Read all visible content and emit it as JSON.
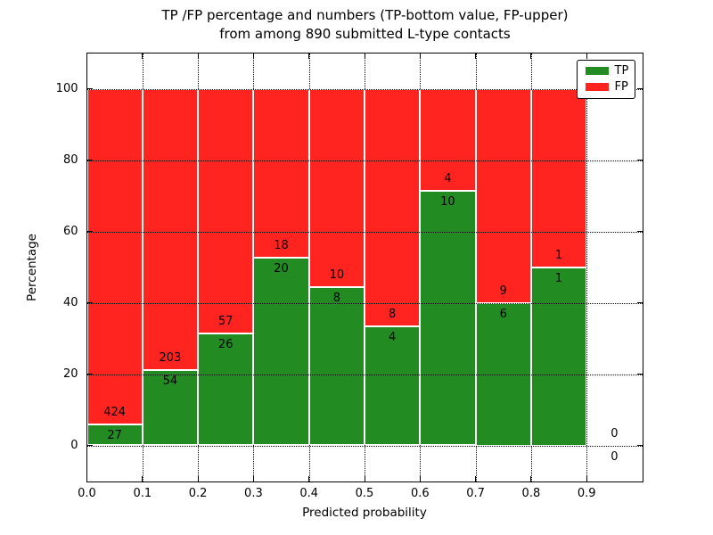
{
  "title": {
    "line1": "TP /FP percentage and numbers (TP-bottom value, FP-upper)",
    "line2": "from among 890 submitted L-type contacts"
  },
  "chart_data": {
    "type": "bar",
    "stacked": true,
    "normalized": "each bin scaled to 100%",
    "title": "TP /FP percentage and numbers (TP-bottom value, FP-upper) from among 890 submitted L-type contacts",
    "xlabel": "Predicted probability",
    "ylabel": "Percentage",
    "xlim": [
      0.0,
      1.0
    ],
    "ylim": [
      -10,
      110
    ],
    "xticks": [
      {
        "value": 0.0,
        "label": "0.0"
      },
      {
        "value": 0.1,
        "label": "0.1"
      },
      {
        "value": 0.2,
        "label": "0.2"
      },
      {
        "value": 0.3,
        "label": "0.3"
      },
      {
        "value": 0.4,
        "label": "0.4"
      },
      {
        "value": 0.5,
        "label": "0.5"
      },
      {
        "value": 0.6,
        "label": "0.6"
      },
      {
        "value": 0.7,
        "label": "0.7"
      },
      {
        "value": 0.8,
        "label": "0.8"
      },
      {
        "value": 0.9,
        "label": "0.9"
      }
    ],
    "yticks": [
      {
        "value": 0,
        "label": "0"
      },
      {
        "value": 20,
        "label": "20"
      },
      {
        "value": 40,
        "label": "40"
      },
      {
        "value": 60,
        "label": "60"
      },
      {
        "value": 80,
        "label": "80"
      },
      {
        "value": 100,
        "label": "100"
      }
    ],
    "grid": "dotted",
    "total_contacts": 890,
    "colors": {
      "tp": "#228b22",
      "fp": "#ff2420",
      "bar_edge": "#ffffff"
    },
    "legend": {
      "position": "upper right",
      "entries": [
        {
          "label": "TP",
          "color": "#228b22"
        },
        {
          "label": "FP",
          "color": "#ff2420"
        }
      ]
    },
    "bins": [
      {
        "x_start": 0.0,
        "x_end": 0.1,
        "tp": 27,
        "fp": 424,
        "tp_pct": 5.99,
        "fp_pct": 94.01
      },
      {
        "x_start": 0.1,
        "x_end": 0.2,
        "tp": 54,
        "fp": 203,
        "tp_pct": 21.01,
        "fp_pct": 78.99
      },
      {
        "x_start": 0.2,
        "x_end": 0.3,
        "tp": 26,
        "fp": 57,
        "tp_pct": 31.33,
        "fp_pct": 68.67
      },
      {
        "x_start": 0.3,
        "x_end": 0.4,
        "tp": 20,
        "fp": 18,
        "tp_pct": 52.63,
        "fp_pct": 47.37
      },
      {
        "x_start": 0.4,
        "x_end": 0.5,
        "tp": 8,
        "fp": 10,
        "tp_pct": 44.44,
        "fp_pct": 55.56
      },
      {
        "x_start": 0.5,
        "x_end": 0.6,
        "tp": 4,
        "fp": 8,
        "tp_pct": 33.33,
        "fp_pct": 66.67
      },
      {
        "x_start": 0.6,
        "x_end": 0.7,
        "tp": 10,
        "fp": 4,
        "tp_pct": 71.43,
        "fp_pct": 28.57
      },
      {
        "x_start": 0.7,
        "x_end": 0.8,
        "tp": 6,
        "fp": 9,
        "tp_pct": 40.0,
        "fp_pct": 60.0
      },
      {
        "x_start": 0.8,
        "x_end": 0.9,
        "tp": 1,
        "fp": 1,
        "tp_pct": 50.0,
        "fp_pct": 50.0
      },
      {
        "x_start": 0.9,
        "x_end": 1.0,
        "tp": 0,
        "fp": 0,
        "tp_pct": 0,
        "fp_pct": 0
      }
    ]
  }
}
